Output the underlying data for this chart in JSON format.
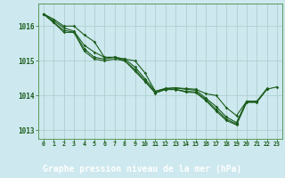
{
  "title": "Graphe pression niveau de la mer (hPa)",
  "background_color": "#cde8ee",
  "label_bg_color": "#2d6e2d",
  "label_text_color": "#ffffff",
  "grid_color": "#b0d0d0",
  "line_color": "#1a5c1a",
  "spine_color": "#5a9a5a",
  "xlim": [
    -0.5,
    23.5
  ],
  "ylim": [
    1012.75,
    1016.65
  ],
  "yticks": [
    1013,
    1014,
    1015,
    1016
  ],
  "xticks": [
    0,
    1,
    2,
    3,
    4,
    5,
    6,
    7,
    8,
    9,
    10,
    11,
    12,
    13,
    14,
    15,
    16,
    17,
    18,
    19,
    20,
    21,
    22,
    23
  ],
  "series": [
    [
      1016.35,
      1016.2,
      1016.0,
      1016.0,
      1015.75,
      1015.55,
      1015.1,
      1015.1,
      1015.05,
      1015.0,
      1014.65,
      1014.12,
      1014.2,
      1014.22,
      1014.2,
      1014.18,
      1014.05,
      1014.0,
      1013.65,
      1013.42,
      1013.83,
      1013.83,
      null,
      null
    ],
    [
      1016.35,
      1016.15,
      1015.95,
      1015.85,
      1015.45,
      1015.25,
      1015.1,
      1015.1,
      1015.05,
      1014.82,
      1014.48,
      1014.12,
      1014.2,
      1014.22,
      1014.18,
      1014.15,
      1013.92,
      1013.68,
      1013.38,
      1013.22,
      1013.83,
      1013.83,
      1014.2,
      null
    ],
    [
      1016.35,
      1016.1,
      1015.88,
      1015.82,
      1015.35,
      1015.1,
      1015.05,
      1015.1,
      1015.0,
      1014.75,
      1014.42,
      1014.08,
      1014.18,
      1014.18,
      1014.12,
      1014.1,
      1013.88,
      1013.6,
      1013.32,
      1013.18,
      1013.82,
      1013.82,
      1014.18,
      null
    ],
    [
      1016.35,
      1016.1,
      1015.82,
      1015.82,
      1015.28,
      1015.05,
      1015.0,
      1015.05,
      1015.0,
      1014.7,
      1014.4,
      1014.07,
      1014.17,
      1014.17,
      1014.1,
      1014.08,
      1013.85,
      1013.55,
      1013.28,
      1013.15,
      1013.8,
      1013.8,
      1014.18,
      1014.25
    ]
  ]
}
